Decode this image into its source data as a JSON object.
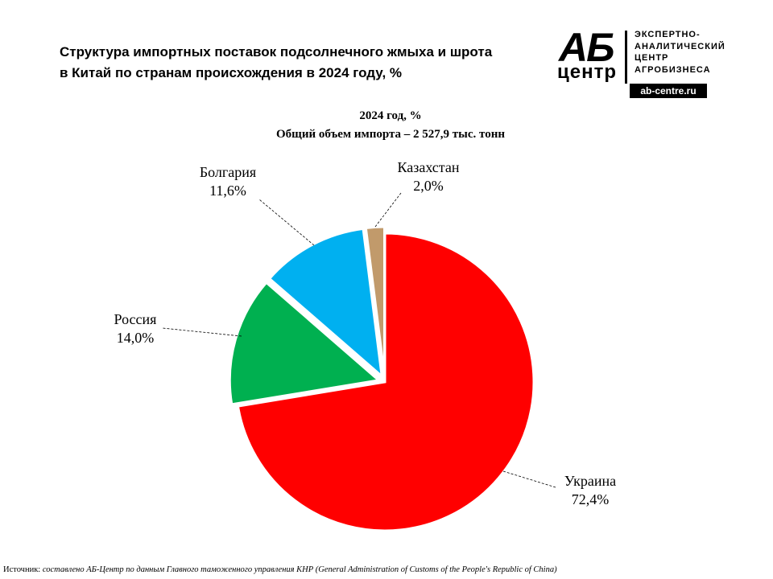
{
  "header": {
    "title_line1": "Структура  импортных  поставок  подсолнечного  жмыха и шрота",
    "title_line2": "в Китай  по странам  происхождения  в 2024 году, %"
  },
  "logo": {
    "mark_top": "АБ",
    "mark_bottom": "центр",
    "text_lines": [
      "ЭКСПЕРТНО-",
      "АНАЛИТИЧЕСКИЙ",
      "ЦЕНТР",
      "АГРОБИЗНЕСА"
    ],
    "url": "ab-centre.ru"
  },
  "chart_data": {
    "type": "pie",
    "title": "2024 год, %",
    "subtitle": "Общий объем импорта – 2 527,9 тыс. тонн",
    "slices": [
      {
        "label": "Украина",
        "value": 72.4,
        "value_label": "72,4%",
        "color": "#ff0000"
      },
      {
        "label": "Россия",
        "value": 14.0,
        "value_label": "14,0%",
        "color": "#00b050"
      },
      {
        "label": "Болгария",
        "value": 11.6,
        "value_label": "11,6%",
        "color": "#00b0f0"
      },
      {
        "label": "Казахстан",
        "value": 2.0,
        "value_label": "2,0%",
        "color": "#c19a6b"
      }
    ]
  },
  "footer": {
    "source_prefix": "Источник:",
    "source_text": "составлено АБ-Центр по данным Главного таможенного управления КНР (General Administration of Customs of the People's Republic  of China)"
  }
}
